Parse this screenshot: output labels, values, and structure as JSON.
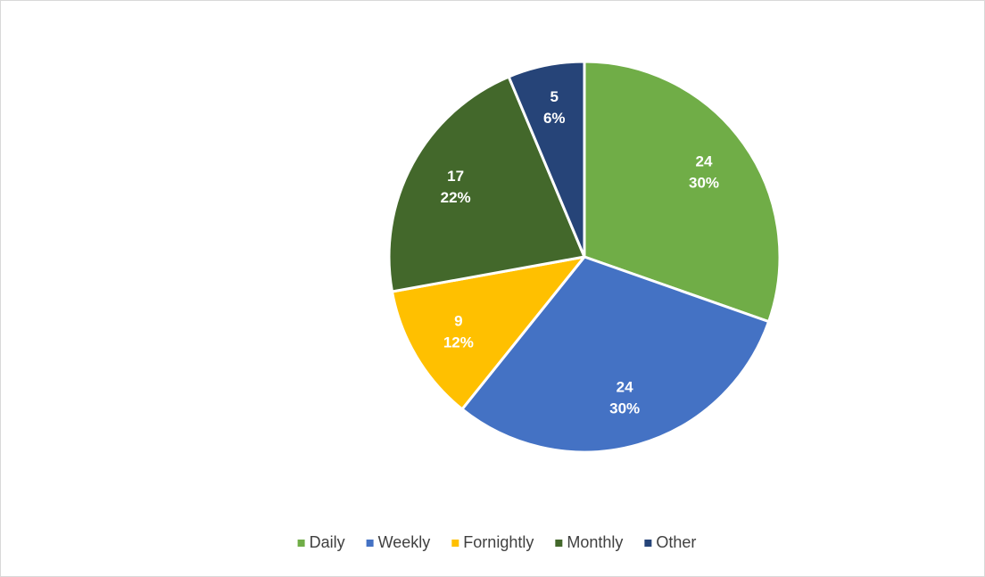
{
  "chart_data": {
    "type": "pie",
    "categories": [
      "Daily",
      "Weekly",
      "Fornightly",
      "Monthly",
      "Other"
    ],
    "values": [
      24,
      24,
      9,
      17,
      5
    ],
    "percents": [
      30,
      30,
      12,
      22,
      6
    ],
    "percent_labels": [
      "30%",
      "30%",
      "12%",
      "22%",
      "6%"
    ],
    "colors": [
      "#70ad47",
      "#4472c4",
      "#ffc000",
      "#43682b",
      "#264478"
    ],
    "legend": "bottom"
  }
}
